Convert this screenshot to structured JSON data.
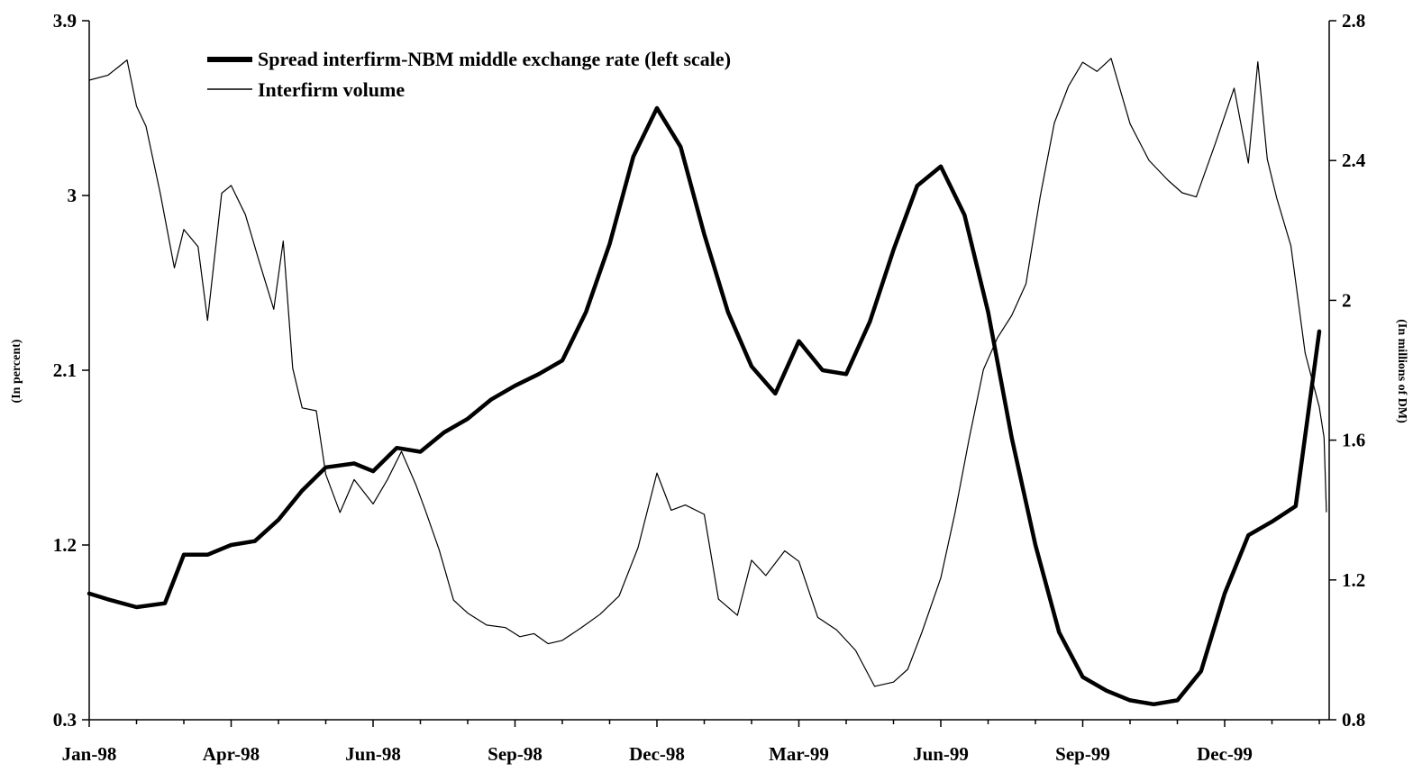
{
  "chart_data": {
    "type": "line",
    "x_tick_labels": [
      "Jan-98",
      "Apr-98",
      "Jun-98",
      "Sep-98",
      "Dec-98",
      "Mar-99",
      "Jun-99",
      "Sep-99",
      "Dec-99"
    ],
    "x_tick_positions": [
      0,
      3,
      6,
      9,
      12,
      15,
      18,
      21,
      24
    ],
    "x_range_months": [
      0,
      26.1
    ],
    "left_axis": {
      "label": "(In percent)",
      "ylim": [
        0.3,
        3.9
      ],
      "ticks": [
        0.3,
        1.2,
        2.1,
        3,
        3.9
      ],
      "tick_labels": [
        "0.3",
        "1.2",
        "2.1",
        "3",
        "3.9"
      ]
    },
    "right_axis": {
      "label": "(In millions of DM)",
      "ylim": [
        0.8,
        2.8
      ],
      "ticks": [
        0.8,
        1.2,
        1.6,
        2,
        2.4,
        2.8
      ],
      "tick_labels": [
        "0.8",
        "1.2",
        "1.6",
        "2",
        "2.4",
        "2.8"
      ]
    },
    "series": [
      {
        "name": "Spread interfirm-NBM middle exchange rate (left scale)",
        "axis": "left",
        "style": "thick",
        "x": [
          0,
          0.4,
          1.0,
          1.6,
          2.0,
          2.5,
          3.0,
          3.5,
          4.0,
          4.5,
          5.0,
          5.6,
          6.0,
          6.5,
          7.0,
          7.5,
          8.0,
          8.5,
          9.0,
          9.5,
          10.0,
          10.5,
          11.0,
          11.5,
          12.0,
          12.5,
          13.0,
          13.5,
          14.0,
          14.5,
          15.0,
          15.5,
          16.0,
          16.5,
          17.0,
          17.5,
          18.0,
          18.5,
          19.0,
          19.5,
          20.0,
          20.5,
          21.0,
          21.5,
          22.0,
          22.5,
          23.0,
          23.5,
          24.0,
          24.5,
          25.0,
          25.5,
          26.0
        ],
        "y": [
          0.95,
          0.92,
          0.88,
          0.9,
          1.15,
          1.15,
          1.2,
          1.22,
          1.33,
          1.48,
          1.6,
          1.62,
          1.58,
          1.7,
          1.68,
          1.78,
          1.85,
          1.95,
          2.02,
          2.08,
          2.15,
          2.4,
          2.75,
          3.2,
          3.45,
          3.25,
          2.8,
          2.4,
          2.12,
          1.98,
          2.25,
          2.1,
          2.08,
          2.35,
          2.72,
          3.05,
          3.15,
          2.9,
          2.4,
          1.75,
          1.2,
          0.75,
          0.52,
          0.45,
          0.4,
          0.38,
          0.4,
          0.55,
          0.95,
          1.25,
          1.32,
          1.4,
          2.3
        ]
      },
      {
        "name": "Interfirm volume",
        "axis": "right",
        "style": "thin",
        "x": [
          0,
          0.4,
          0.8,
          1.0,
          1.2,
          1.5,
          1.8,
          2.0,
          2.3,
          2.5,
          2.8,
          3.0,
          3.3,
          3.6,
          3.9,
          4.1,
          4.3,
          4.5,
          4.8,
          5.0,
          5.3,
          5.6,
          6.0,
          6.3,
          6.6,
          6.9,
          7.1,
          7.4,
          7.7,
          8.0,
          8.4,
          8.8,
          9.1,
          9.4,
          9.7,
          10.0,
          10.4,
          10.8,
          11.2,
          11.6,
          12.0,
          12.3,
          12.6,
          13.0,
          13.3,
          13.7,
          14.0,
          14.3,
          14.7,
          15.0,
          15.4,
          15.8,
          16.2,
          16.6,
          17.0,
          17.3,
          17.6,
          18.0,
          18.3,
          18.6,
          18.9,
          19.2,
          19.5,
          19.8,
          20.1,
          20.4,
          20.7,
          21.0,
          21.3,
          21.6,
          22.0,
          22.4,
          22.8,
          23.1,
          23.4,
          23.8,
          24.2,
          24.5,
          24.7,
          24.9,
          25.1,
          25.4,
          25.7,
          26.0,
          26.1,
          26.15
        ],
        "y": [
          2.63,
          2.65,
          2.68,
          2.56,
          2.5,
          2.3,
          2.1,
          2.2,
          2.15,
          1.95,
          2.3,
          2.33,
          2.25,
          2.1,
          1.98,
          2.17,
          1.8,
          1.7,
          1.68,
          1.5,
          1.4,
          1.48,
          1.42,
          1.49,
          1.56,
          1.48,
          1.4,
          1.28,
          1.15,
          1.1,
          1.07,
          1.07,
          1.03,
          1.05,
          1.02,
          1.02,
          1.07,
          1.1,
          1.15,
          1.3,
          1.5,
          1.4,
          1.42,
          1.38,
          1.15,
          1.1,
          1.25,
          1.22,
          1.28,
          1.25,
          1.1,
          1.05,
          1.0,
          0.9,
          0.9,
          0.95,
          1.05,
          1.2,
          1.4,
          1.6,
          1.8,
          1.9,
          1.95,
          2.05,
          2.3,
          2.5,
          2.62,
          2.68,
          2.65,
          2.7,
          2.5,
          2.4,
          2.35,
          2.3,
          2.3,
          2.45,
          2.6,
          2.4,
          2.68,
          2.4,
          2.3,
          2.15,
          1.85,
          1.7,
          1.6,
          1.4
        ]
      }
    ],
    "legend_position": "top-left",
    "grid": false
  }
}
